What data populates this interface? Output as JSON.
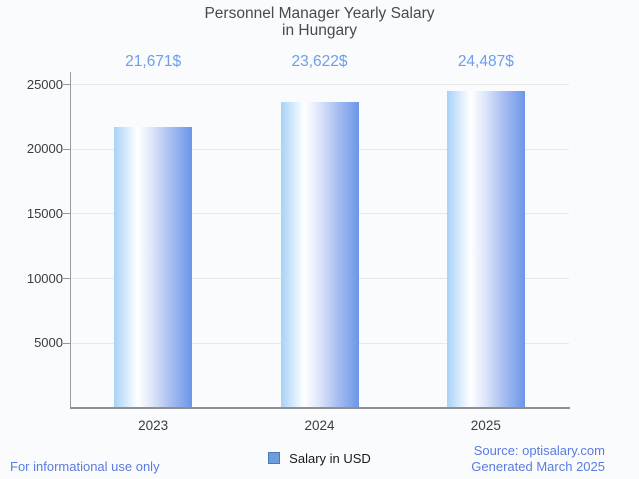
{
  "chart_data": {
    "type": "bar",
    "title": "Personnel Manager Yearly Salary in Hungary",
    "title_lines": [
      "Personnel Manager Yearly Salary",
      "in Hungary"
    ],
    "categories": [
      "2023",
      "2024",
      "2025"
    ],
    "values": [
      21671,
      23622,
      24487
    ],
    "value_labels": [
      "21,671$",
      "23,622$",
      "24,487$"
    ],
    "series_name": "Salary in USD",
    "xlabel": "",
    "ylabel": "",
    "ylim": [
      0,
      25000
    ],
    "yticks": [
      5000,
      10000,
      15000,
      20000,
      25000
    ],
    "grid": true,
    "legend_position": "bottom-center",
    "colors": {
      "bar_gradient": [
        "#a7d2f8",
        "#ffffff",
        "#6c96e9"
      ],
      "value_label": "#6d9eeb",
      "axis": "#8f8f8f",
      "gridline": "#e8e8e8",
      "tick_text": "#3c3c3c",
      "title_text": "#4a4a4a",
      "legend_swatch_fill": "#6d9ddd",
      "legend_swatch_border": "#4a7aba",
      "footer_text": "#5a7ce1",
      "background": "#fafbfd"
    }
  },
  "legend": {
    "label": "Salary in USD"
  },
  "footer": {
    "disclaimer": "For informational use only",
    "source": "Source: optisalary.com",
    "generated": "Generated March 2025"
  }
}
